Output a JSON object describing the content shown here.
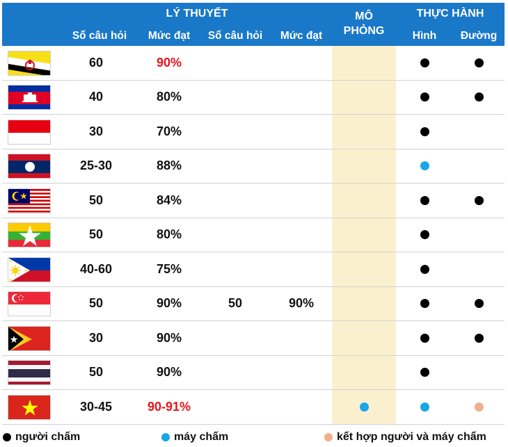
{
  "header": {
    "theory": "LÝ THUYẾT",
    "simulation": "MÔ\nPHỎNG",
    "simulation_line1": "MÔ",
    "simulation_line2": "PHỎNG",
    "practice": "THỰC HÀNH",
    "sub": {
      "questions_1": "Số câu hỏi",
      "pass_1": "Mức đạt",
      "questions_2": "Số câu hỏi",
      "pass_2": "Mức đạt",
      "figure": "Hình",
      "road": "Đường"
    }
  },
  "colors": {
    "header_bg": "#1a78c8",
    "simulation_band": "#fbf0ce",
    "highlight_red": "#e8141b",
    "dot_human": "#000000",
    "dot_machine": "#19a6e7",
    "dot_combined": "#f0b08c"
  },
  "rows": [
    {
      "flag": "brunei",
      "q1": "60",
      "p1": "90%",
      "p1_red": true,
      "q2": "",
      "p2": "",
      "sim": "",
      "figure": "black",
      "road": "black"
    },
    {
      "flag": "cambodia",
      "q1": "40",
      "p1": "80%",
      "p1_red": false,
      "q2": "",
      "p2": "",
      "sim": "",
      "figure": "black",
      "road": "black"
    },
    {
      "flag": "indonesia",
      "q1": "30",
      "p1": "70%",
      "p1_red": false,
      "q2": "",
      "p2": "",
      "sim": "",
      "figure": "black",
      "road": ""
    },
    {
      "flag": "laos",
      "q1": "25-30",
      "p1": "88%",
      "p1_red": false,
      "q2": "",
      "p2": "",
      "sim": "",
      "figure": "blue",
      "road": ""
    },
    {
      "flag": "malaysia",
      "q1": "50",
      "p1": "84%",
      "p1_red": false,
      "q2": "",
      "p2": "",
      "sim": "",
      "figure": "black",
      "road": "black"
    },
    {
      "flag": "myanmar",
      "q1": "50",
      "p1": "80%",
      "p1_red": false,
      "q2": "",
      "p2": "",
      "sim": "",
      "figure": "black",
      "road": ""
    },
    {
      "flag": "philippines",
      "q1": "40-60",
      "p1": "75%",
      "p1_red": false,
      "q2": "",
      "p2": "",
      "sim": "",
      "figure": "black",
      "road": ""
    },
    {
      "flag": "singapore",
      "q1": "50",
      "p1": "90%",
      "p1_red": false,
      "q2": "50",
      "p2": "90%",
      "sim": "",
      "figure": "black",
      "road": "black"
    },
    {
      "flag": "timor-leste",
      "q1": "30",
      "p1": "90%",
      "p1_red": false,
      "q2": "",
      "p2": "",
      "sim": "",
      "figure": "black",
      "road": "black"
    },
    {
      "flag": "thailand",
      "q1": "50",
      "p1": "90%",
      "p1_red": false,
      "q2": "",
      "p2": "",
      "sim": "",
      "figure": "black",
      "road": ""
    },
    {
      "flag": "vietnam",
      "q1": "30-45",
      "p1": "90-91%",
      "p1_red": true,
      "q2": "",
      "p2": "",
      "sim": "blue",
      "figure": "blue",
      "road": "peach"
    }
  ],
  "legend": {
    "human": "người chấm",
    "machine": "máy chấm",
    "combined": "kết hợp người và máy chấm"
  }
}
